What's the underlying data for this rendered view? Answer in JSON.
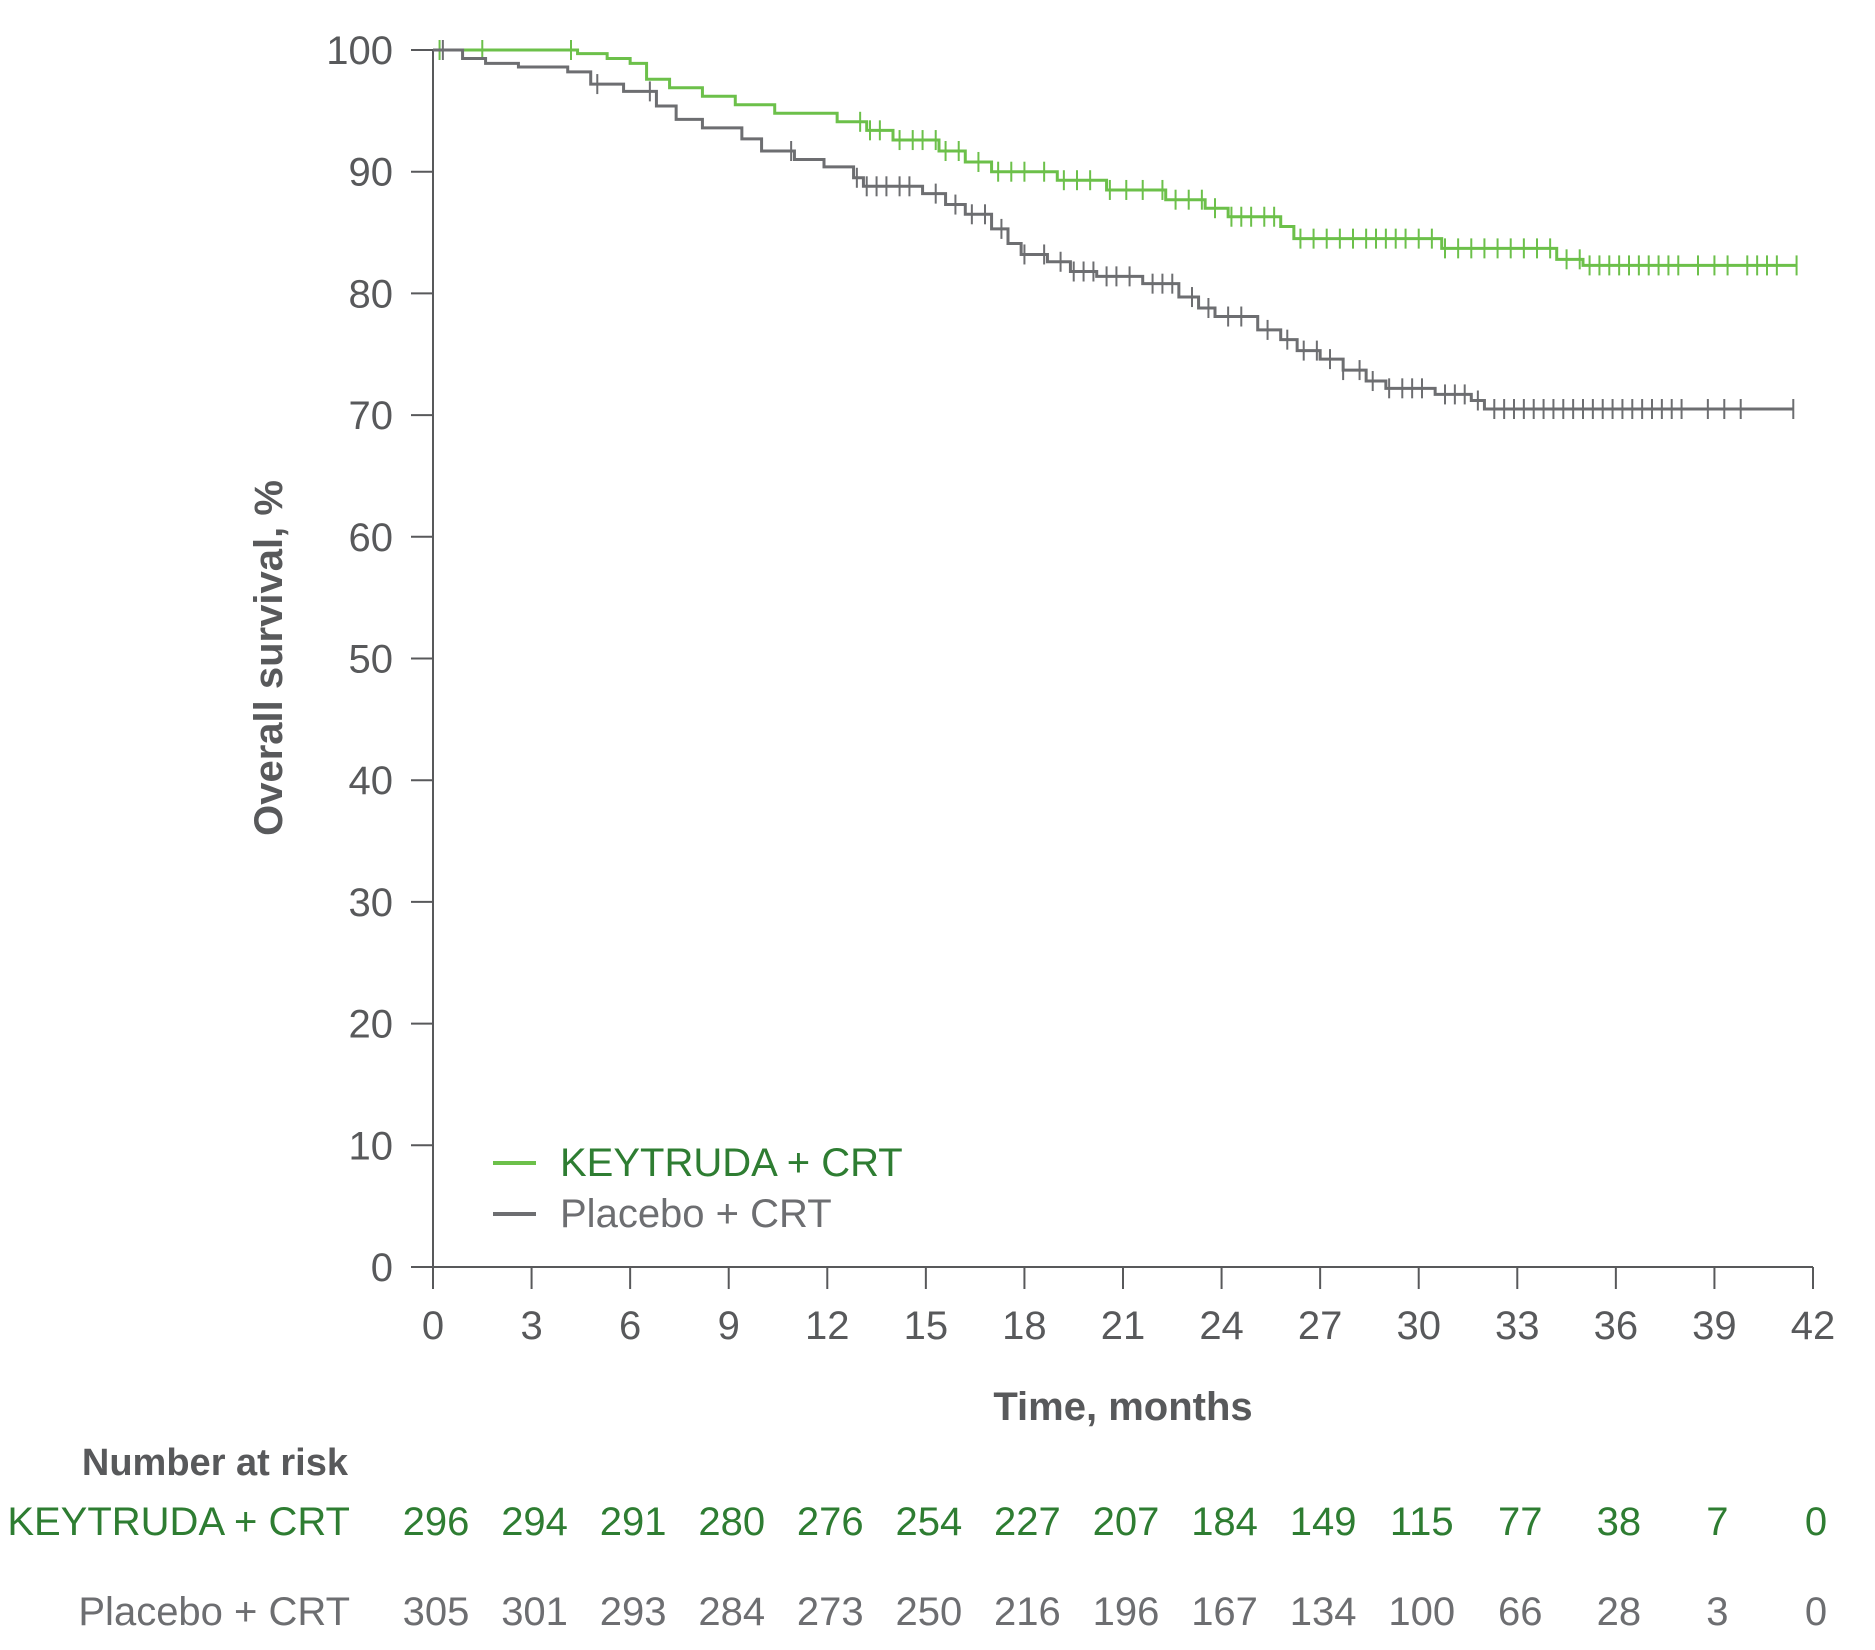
{
  "chart_data": {
    "type": "line",
    "subtype": "kaplan-meier",
    "title": "",
    "xlabel": "Time, months",
    "ylabel": "Overall survival, %",
    "xlim": [
      0,
      42
    ],
    "ylim": [
      0,
      100
    ],
    "x_ticks": [
      0,
      3,
      6,
      9,
      12,
      15,
      18,
      21,
      24,
      27,
      30,
      33,
      36,
      39,
      42
    ],
    "y_ticks": [
      0,
      10,
      20,
      30,
      40,
      50,
      60,
      70,
      80,
      90,
      100
    ],
    "grid": false,
    "legend_position": "bottom-left",
    "colors": {
      "keytruda": "#6cc04a",
      "placebo": "#6d6e71",
      "keytruda_text": "#2e7d32",
      "axis": "#58595b"
    },
    "series": [
      {
        "name": "KEYTRUDA + CRT",
        "color": "#6cc04a",
        "steps": [
          [
            0,
            100
          ],
          [
            4.4,
            99.7
          ],
          [
            5.3,
            99.3
          ],
          [
            6.0,
            98.9
          ],
          [
            6.5,
            97.6
          ],
          [
            7.2,
            96.9
          ],
          [
            8.2,
            96.2
          ],
          [
            9.2,
            95.5
          ],
          [
            10.4,
            94.8
          ],
          [
            12.3,
            94.1
          ],
          [
            13.2,
            93.4
          ],
          [
            14.0,
            92.6
          ],
          [
            15.4,
            91.7
          ],
          [
            16.2,
            90.8
          ],
          [
            17.0,
            90.0
          ],
          [
            19.0,
            89.3
          ],
          [
            20.5,
            88.5
          ],
          [
            22.3,
            87.7
          ],
          [
            23.5,
            87.0
          ],
          [
            24.2,
            86.3
          ],
          [
            25.8,
            85.5
          ],
          [
            26.2,
            84.5
          ],
          [
            30.7,
            83.7
          ],
          [
            34.2,
            82.8
          ],
          [
            35.0,
            82.3
          ],
          [
            41.5,
            82.3
          ]
        ],
        "censor_x": [
          0.2,
          1.5,
          4.2,
          13.0,
          13.3,
          13.6,
          14.2,
          14.6,
          14.9,
          15.3,
          15.6,
          16.0,
          16.6,
          17.2,
          17.6,
          18.0,
          18.6,
          19.2,
          19.6,
          20.0,
          20.6,
          21.1,
          21.6,
          22.2,
          22.6,
          23.0,
          23.4,
          23.8,
          24.3,
          24.6,
          24.9,
          25.3,
          25.6,
          26.4,
          26.8,
          27.2,
          27.6,
          28.0,
          28.4,
          28.7,
          29.0,
          29.3,
          29.6,
          30.0,
          30.4,
          30.8,
          31.2,
          31.6,
          32.0,
          32.4,
          32.8,
          33.2,
          33.6,
          34.0,
          34.5,
          34.9,
          35.2,
          35.5,
          35.8,
          36.1,
          36.4,
          36.7,
          37.0,
          37.3,
          37.6,
          37.9,
          38.5,
          39.0,
          39.4,
          40.0,
          40.3,
          40.6,
          40.9,
          41.5
        ]
      },
      {
        "name": "Placebo + CRT",
        "color": "#6d6e71",
        "steps": [
          [
            0,
            100
          ],
          [
            0.9,
            99.3
          ],
          [
            1.6,
            98.9
          ],
          [
            2.6,
            98.6
          ],
          [
            4.1,
            98.2
          ],
          [
            4.8,
            97.2
          ],
          [
            5.8,
            96.6
          ],
          [
            6.8,
            95.4
          ],
          [
            7.4,
            94.3
          ],
          [
            8.2,
            93.6
          ],
          [
            9.4,
            92.7
          ],
          [
            10.0,
            91.7
          ],
          [
            11.0,
            91.0
          ],
          [
            11.9,
            90.4
          ],
          [
            12.8,
            89.5
          ],
          [
            13.1,
            88.8
          ],
          [
            14.9,
            88.2
          ],
          [
            15.6,
            87.3
          ],
          [
            16.2,
            86.5
          ],
          [
            17.0,
            85.3
          ],
          [
            17.5,
            84.1
          ],
          [
            17.9,
            83.2
          ],
          [
            18.7,
            82.6
          ],
          [
            19.4,
            81.8
          ],
          [
            20.2,
            81.4
          ],
          [
            21.6,
            80.8
          ],
          [
            22.7,
            79.7
          ],
          [
            23.3,
            78.8
          ],
          [
            23.8,
            78.1
          ],
          [
            25.1,
            77.0
          ],
          [
            25.8,
            76.2
          ],
          [
            26.3,
            75.3
          ],
          [
            27.0,
            74.6
          ],
          [
            27.7,
            73.7
          ],
          [
            28.4,
            72.8
          ],
          [
            29.0,
            72.2
          ],
          [
            30.5,
            71.7
          ],
          [
            31.6,
            71.2
          ],
          [
            32.0,
            70.5
          ],
          [
            41.4,
            70.5
          ]
        ],
        "censor_x": [
          0.3,
          5.0,
          6.6,
          10.9,
          12.9,
          13.2,
          13.5,
          13.8,
          14.2,
          14.5,
          15.3,
          15.9,
          16.4,
          16.8,
          17.3,
          18.0,
          18.6,
          19.1,
          19.5,
          19.8,
          20.1,
          20.5,
          20.8,
          21.2,
          21.9,
          22.2,
          22.5,
          23.1,
          23.6,
          24.2,
          24.6,
          25.4,
          26.0,
          26.5,
          26.9,
          27.3,
          27.7,
          28.2,
          28.6,
          29.1,
          29.5,
          29.8,
          30.1,
          30.8,
          31.1,
          31.4,
          31.8,
          32.3,
          32.6,
          32.9,
          33.2,
          33.5,
          33.8,
          34.1,
          34.4,
          34.7,
          35.0,
          35.3,
          35.6,
          35.9,
          36.2,
          36.5,
          36.8,
          37.1,
          37.4,
          37.7,
          38.0,
          38.8,
          39.3,
          39.8,
          41.4
        ]
      }
    ],
    "risk_table": {
      "header": "Number at risk",
      "rows": [
        {
          "label": "KEYTRUDA + CRT",
          "values": [
            296,
            294,
            291,
            280,
            276,
            254,
            227,
            207,
            184,
            149,
            115,
            77,
            38,
            7,
            0
          ]
        },
        {
          "label": "Placebo + CRT",
          "values": [
            305,
            301,
            293,
            284,
            273,
            250,
            216,
            196,
            167,
            134,
            100,
            66,
            28,
            3,
            0
          ]
        }
      ]
    }
  }
}
